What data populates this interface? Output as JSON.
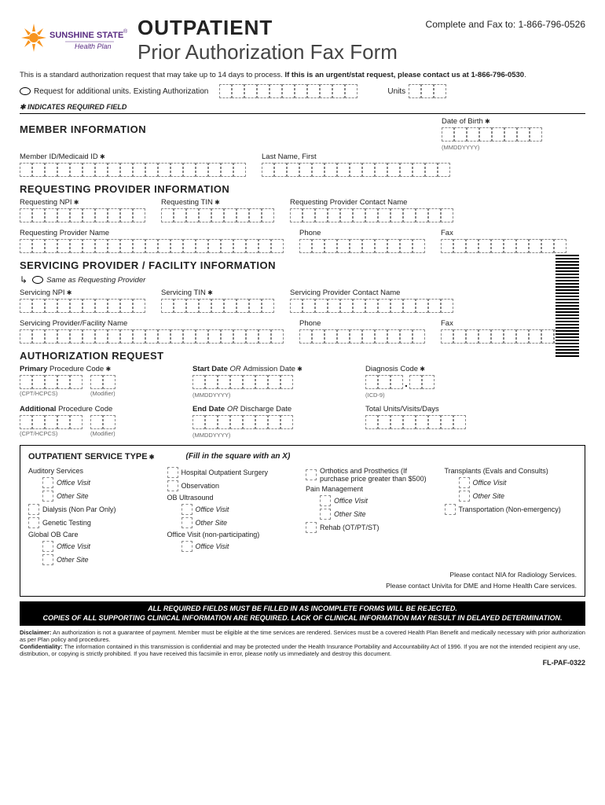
{
  "header": {
    "logo_name": "SUNSHINE STATE",
    "logo_reg": "®",
    "logo_sub": "Health Plan",
    "title_main": "OUTPATIENT",
    "title_sub": "Prior Authorization Fax Form",
    "fax_to": "Complete and Fax to: 1-866-796-0526"
  },
  "intro": {
    "text1": "This is a standard authorization request that may take up to 14 days to process. ",
    "text2": "If this is an urgent/stat request, please contact us at 1-866-796-0530",
    "period": "."
  },
  "add_units": {
    "label": "Request for additional units. Existing Authorization",
    "units_label": "Units"
  },
  "required_note": "✱ INDICATES REQUIRED FIELD",
  "sections": {
    "member": {
      "title": "MEMBER INFORMATION",
      "dob_label": "Date of Birth",
      "dob_hint": "(MMDDYYYY)",
      "member_id_label": "Member ID/Medicaid ID",
      "last_first_label": "Last Name, First"
    },
    "requesting": {
      "title": "REQUESTING PROVIDER INFORMATION",
      "npi_label": "Requesting NPI",
      "tin_label": "Requesting TIN",
      "contact_label": "Requesting Provider Contact Name",
      "name_label": "Requesting Provider Name",
      "phone_label": "Phone",
      "fax_label": "Fax"
    },
    "servicing": {
      "title": "SERVICING PROVIDER / FACILITY INFORMATION",
      "same_as": "Same as Requesting Provider",
      "npi_label": "Servicing NPI",
      "tin_label": "Servicing TIN",
      "contact_label": "Servicing Provider Contact Name",
      "name_label": "Servicing Provider/Facility Name",
      "phone_label": "Phone",
      "fax_label": "Fax"
    },
    "auth": {
      "title": "AUTHORIZATION REQUEST",
      "primary_label_b": "Primary",
      "primary_label": " Procedure Code",
      "cpt_hint": "(CPT/HCPCS)",
      "mod_hint": "(Modifier)",
      "start_label_b": "Start Date",
      "start_or": " OR ",
      "start_label": "Admission Date",
      "date_hint": "(MMDDYYYY)",
      "diag_label": "Diagnosis Code",
      "icd_hint": "(ICD-9)",
      "additional_b": "Additional",
      "additional": " Procedure Code",
      "end_label_b": "End Date",
      "end_or": " OR ",
      "end_label": "Discharge Date",
      "total_label": "Total Units/Visits/Days"
    }
  },
  "service_type": {
    "title": "OUTPATIENT SERVICE TYPE",
    "instruction": "(Fill in the square with an X)",
    "col1": {
      "auditory": "Auditory Services",
      "office": "Office Visit",
      "other": "Other Site",
      "dialysis": "Dialysis (Non Par Only)",
      "genetic": "Genetic Testing",
      "global": "Global OB Care"
    },
    "col2": {
      "hospital": "Hospital Outpatient Surgery",
      "observation": "Observation",
      "ob_us": "OB Ultrasound",
      "office": "Office Visit",
      "other": "Other Site",
      "office_np": "Office Visit (non-participating)",
      "office2": "Office Visit"
    },
    "col3": {
      "orthotics": "Orthotics and Prosthetics (If purchase price greater than $500)",
      "pain": "Pain Management",
      "office": "Office Visit",
      "other": "Other Site",
      "rehab": "Rehab (OT/PT/ST)"
    },
    "col4": {
      "transplants": "Transplants (Evals and Consults)",
      "office": "Office Visit",
      "other": "Other Site",
      "transport": "Transportation (Non-emergency)"
    },
    "note1": "Please contact NIA for Radiology Services.",
    "note2": "Please contact Univita for DME and Home Health Care services."
  },
  "black_bar": {
    "line1": "ALL REQUIRED FIELDS MUST BE FILLED IN AS INCOMPLETE FORMS WILL BE REJECTED.",
    "line2": "COPIES OF ALL SUPPORTING CLINICAL INFORMATION ARE REQUIRED. LACK OF CLINICAL INFORMATION MAY RESULT IN DELAYED DETERMINATION."
  },
  "disclaimer": {
    "d1_b": "Disclaimer:",
    "d1": " An authorization is not a guarantee of payment. Member must be eligible at the time services are rendered. Services must be a covered Health Plan Benefit and medically necessary with prior authorization as per Plan policy and procedures.",
    "d2_b": "Confidentiality:",
    "d2": " The information contained in this transmission is confidential and may be protected under the Health Insurance Portability and Accountability Act of 1996. If you are not the intended recipient any use, distribution, or copying is strictly prohibited. If you have received this facsimile in error, please notify us immediately and destroy this document."
  },
  "form_id": "FL-PAF-0322",
  "box_counts": {
    "auth_existing": 11,
    "units": 3,
    "dob": 8,
    "member_id": 18,
    "last_first": 15,
    "npi": 10,
    "tin": 9,
    "contact": 13,
    "name": 21,
    "phone": 10,
    "fax": 10,
    "proc": 5,
    "mod": 2,
    "date": 8,
    "diag1": 3,
    "diag2": 2,
    "total": 8
  }
}
